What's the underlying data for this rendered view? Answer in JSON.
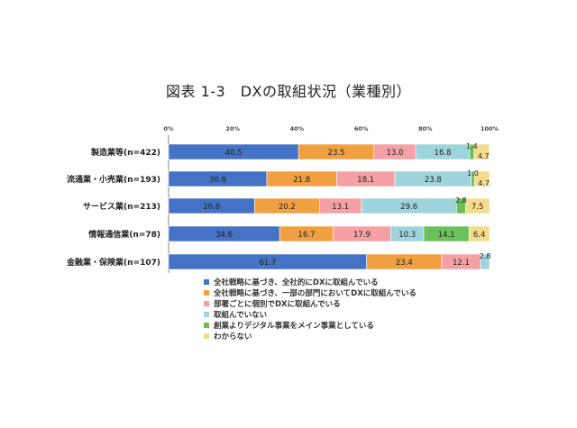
{
  "chart_data": {
    "type": "bar",
    "stacked": true,
    "orientation": "horizontal",
    "percent": true,
    "title": "図表 1-3　DXの取組状況（業種別）",
    "xticks": [
      "0%",
      "20%",
      "40%",
      "60%",
      "80%",
      "100%"
    ],
    "categories": [
      "製造業等(n=422)",
      "流通業・小売業(n=193)",
      "サービス業(n=213)",
      "情報通信業(n=78)",
      "金融業・保険業(n=107)"
    ],
    "series": [
      {
        "name": "全社戦略に基づき、全社的にDXに取組んでいる",
        "color": "#4472c4",
        "values": [
          40.5,
          30.6,
          26.8,
          34.6,
          61.7
        ]
      },
      {
        "name": "全社戦略に基づき、一部の部門においてDXに取組んでいる",
        "color": "#f0a040",
        "values": [
          23.5,
          21.8,
          20.2,
          16.7,
          23.4
        ]
      },
      {
        "name": "部署ごとに個別でDXに取組んでいる",
        "color": "#f4a0a4",
        "values": [
          13.0,
          18.1,
          13.1,
          17.9,
          12.1
        ]
      },
      {
        "name": "取組んでいない",
        "color": "#9fd4dc",
        "values": [
          16.8,
          23.8,
          29.6,
          10.3,
          2.8
        ]
      },
      {
        "name": "創業よりデジタル事業をメイン事業としている",
        "color": "#6cc05c",
        "values": [
          1.4,
          1.0,
          2.8,
          14.1,
          0
        ]
      },
      {
        "name": "わからない",
        "color": "#f5dc8c",
        "values": [
          4.7,
          4.7,
          7.5,
          6.4,
          0
        ]
      }
    ],
    "labels": [
      [
        "40.5",
        "23.5",
        "13.0",
        "16.8",
        "1.4",
        "4.7"
      ],
      [
        "30.6",
        "21.8",
        "18.1",
        "23.8",
        "1.0",
        "4.7"
      ],
      [
        "26.8",
        "20.2",
        "13.1",
        "29.6",
        "2.8",
        "7.5"
      ],
      [
        "34.6",
        "16.7",
        "17.9",
        "10.3",
        "14.1",
        "6.4"
      ],
      [
        "61.7",
        "23.4",
        "12.1",
        "2.8",
        "",
        ""
      ]
    ],
    "xlim": [
      0,
      100
    ],
    "legend_position": "bottom"
  }
}
